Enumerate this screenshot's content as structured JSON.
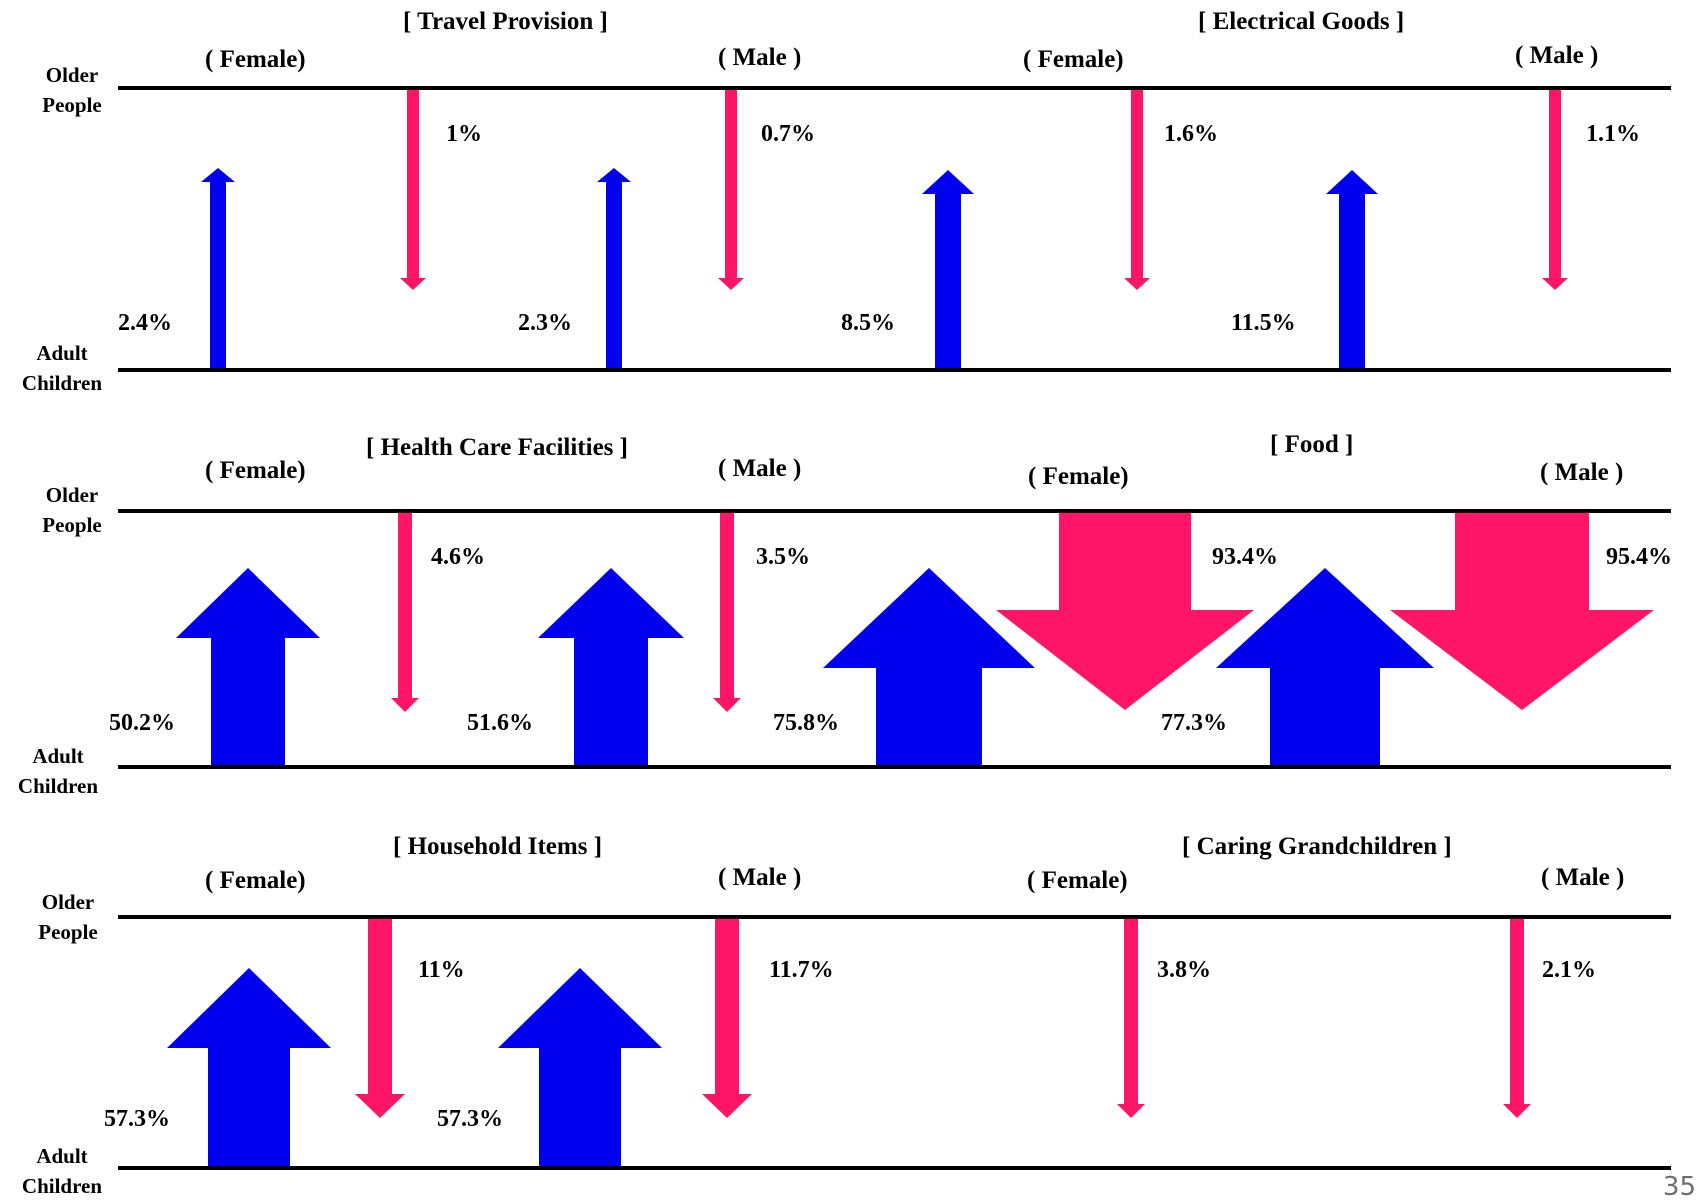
{
  "labels": {
    "older": "Older",
    "people": "People",
    "adult": "Adult",
    "children": "Children"
  },
  "colors": {
    "to_older": "#0000ee",
    "to_children": "#ff1568",
    "line": "#000000"
  },
  "page_number": "35",
  "panels": [
    {
      "title": "[ Travel Provision ]",
      "female": "( Female)",
      "male": "( Male )",
      "female_up": "2.4%",
      "female_down": "1%",
      "male_up": "2.3%",
      "male_down": "0.7%"
    },
    {
      "title": "[ Electrical Goods ]",
      "female": "( Female)",
      "male": "( Male )",
      "female_up": "8.5%",
      "female_down": "1.6%",
      "male_up": "11.5%",
      "male_down": "1.1%"
    },
    {
      "title": "[ Health Care Facilities ]",
      "female": "( Female)",
      "male": "( Male )",
      "female_up": "50.2%",
      "female_down": "4.6%",
      "male_up": "51.6%",
      "male_down": "3.5%"
    },
    {
      "title": "[ Food ]",
      "female": "( Female)",
      "male": "( Male )",
      "female_up": "75.8%",
      "female_down": "93.4%",
      "male_up": "77.3%",
      "male_down": "95.4%"
    },
    {
      "title": "[ Household Items ]",
      "female": "( Female)",
      "male": "( Male )",
      "female_up": "57.3%",
      "female_down": "11%",
      "male_up": "57.3%",
      "male_down": "11.7%"
    },
    {
      "title": "[ Caring Grandchildren ]",
      "female": "( Female)",
      "male": "( Male )",
      "female_up": "",
      "female_down": "3.8%",
      "male_up": "",
      "male_down": "2.1%"
    }
  ]
}
